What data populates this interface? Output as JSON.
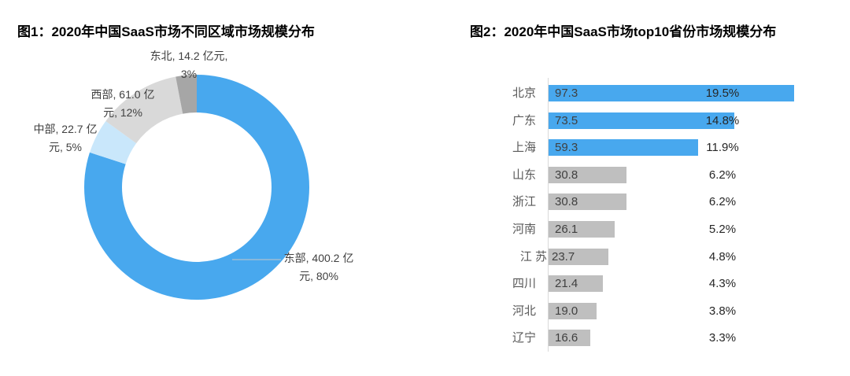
{
  "figure1": {
    "title": "图1：2020年中国SaaS市场不同区域市场规模分布",
    "labels": {
      "east": {
        "line1": "东部, 400.2 亿",
        "line2": "元, 80%"
      },
      "central": {
        "line1": "中部, 22.7 亿",
        "line2": "元, 5%"
      },
      "west": {
        "line1": "西部, 61.0 亿",
        "line2": "元, 12%"
      },
      "northeast": {
        "line1": "东北, 14.2 亿元,",
        "line2": "3%"
      }
    }
  },
  "figure2": {
    "title": "图2：2020年中国SaaS市场top10省份市场规模分布"
  },
  "colors": {
    "accent_blue": "#48A8EE",
    "pale_blue": "#C9E7FB",
    "light_gray": "#D9D9D9",
    "dark_gray": "#A6A6A6",
    "bar_gray": "#BFBFBF",
    "leader_line": "#C8C8C8"
  },
  "chart_data": [
    {
      "type": "pie",
      "donut": true,
      "title": "图1：2020年中国SaaS市场不同区域市场规模分布",
      "unit": "亿元",
      "slices": [
        {
          "key": "east",
          "label": "东部",
          "value": 400.2,
          "percent": 80,
          "color": "#48A8EE"
        },
        {
          "key": "central",
          "label": "中部",
          "value": 22.7,
          "percent": 5,
          "color": "#C9E7FB"
        },
        {
          "key": "west",
          "label": "西部",
          "value": 61.0,
          "percent": 12,
          "color": "#D9D9D9"
        },
        {
          "key": "northeast",
          "label": "东北",
          "value": 14.2,
          "percent": 3,
          "color": "#A6A6A6"
        }
      ],
      "start_angle_deg": 0,
      "direction": "clockwise",
      "legend": "none"
    },
    {
      "type": "bar",
      "orientation": "horizontal",
      "title": "图2：2020年中国SaaS市场top10省份市场规模分布",
      "xlim": [
        0,
        100
      ],
      "grid": false,
      "rows": [
        {
          "category": "北京",
          "value": 97.3,
          "value_label": "97.3",
          "percent_label": "19.5%",
          "color": "#48A8EE"
        },
        {
          "category": "广东",
          "value": 73.5,
          "value_label": "73.5",
          "percent_label": "14.8%",
          "color": "#48A8EE"
        },
        {
          "category": "上海",
          "value": 59.3,
          "value_label": "59.3",
          "percent_label": "11.9%",
          "color": "#48A8EE"
        },
        {
          "category": "山东",
          "value": 30.8,
          "value_label": "30.8",
          "percent_label": "6.2%",
          "color": "#BFBFBF"
        },
        {
          "category": "浙江",
          "value": 30.8,
          "value_label": "30.8",
          "percent_label": "6.2%",
          "color": "#BFBFBF"
        },
        {
          "category": "河南",
          "value": 26.1,
          "value_label": "26.1",
          "percent_label": "5.2%",
          "color": "#BFBFBF"
        },
        {
          "category": "江 苏",
          "value": 23.7,
          "value_label": "23.7",
          "percent_label": "4.8%",
          "color": "#BFBFBF"
        },
        {
          "category": "四川",
          "value": 21.4,
          "value_label": "21.4",
          "percent_label": "4.3%",
          "color": "#BFBFBF"
        },
        {
          "category": "河北",
          "value": 19.0,
          "value_label": "19.0",
          "percent_label": "3.8%",
          "color": "#BFBFBF"
        },
        {
          "category": "辽宁",
          "value": 16.6,
          "value_label": "16.6",
          "percent_label": "3.3%",
          "color": "#BFBFBF"
        }
      ]
    }
  ]
}
